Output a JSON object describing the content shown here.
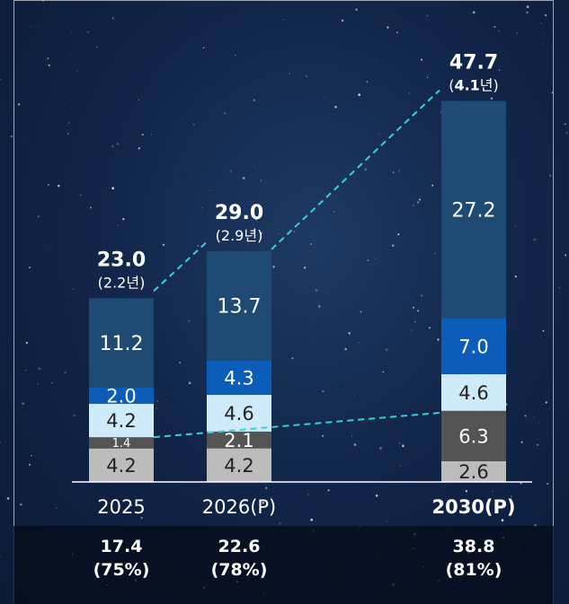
{
  "colors": {
    "seg_gray": "#bcbcbc",
    "seg_dark": "#545454",
    "seg_light": "#cfeaf8",
    "seg_blue": "#0c5db9",
    "seg_navy": "#1e4a74",
    "trend": "#39d0dc"
  },
  "chart_data": {
    "type": "bar",
    "stacked": true,
    "categories": [
      "2025",
      "2026(P)",
      "2030(P)"
    ],
    "series": [
      {
        "values": [
          4.2,
          4.2,
          2.6
        ]
      },
      {
        "values": [
          1.4,
          2.1,
          6.3
        ]
      },
      {
        "values": [
          4.2,
          4.6,
          4.6
        ]
      },
      {
        "values": [
          2.0,
          4.3,
          7.0
        ]
      },
      {
        "values": [
          11.2,
          13.7,
          27.2
        ]
      }
    ],
    "totals": [
      "23.0",
      "29.0",
      "47.7"
    ],
    "total_sub": [
      {
        "open": "(",
        "num": "2.2",
        "unit": "년",
        "close": ")",
        "bold": false
      },
      {
        "open": "(",
        "num": "2.9",
        "unit": "년",
        "close": ")",
        "bold": false
      },
      {
        "open": "(",
        "num": "4.1",
        "unit": "년",
        "close": ")",
        "bold": true
      }
    ],
    "segment_labels": [
      [
        "4.2",
        "1.4",
        "4.2",
        "2.0",
        "11.2"
      ],
      [
        "4.2",
        "2.1",
        "4.6",
        "4.3",
        "13.7"
      ],
      [
        "2.6",
        "6.3",
        "4.6",
        "7.0",
        "27.2"
      ]
    ],
    "footer": [
      {
        "value": "17.4",
        "pct": "(75%)"
      },
      {
        "value": "22.6",
        "pct": "(78%)"
      },
      {
        "value": "38.8",
        "pct": "(81%)"
      }
    ],
    "legend": "none",
    "grid": false,
    "ylim": [
      0,
      50
    ]
  }
}
